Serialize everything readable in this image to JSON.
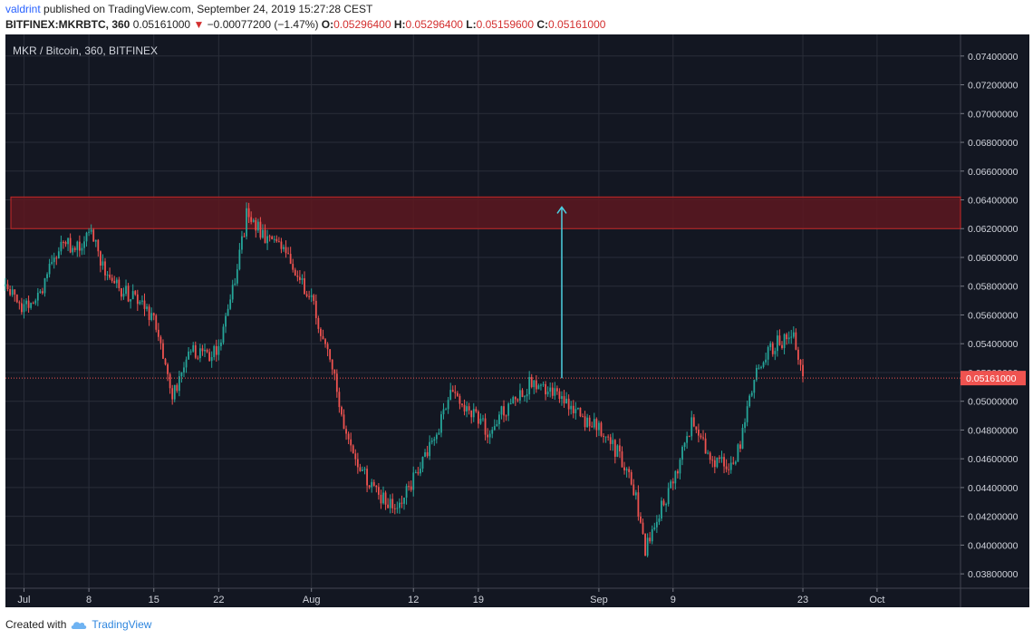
{
  "header": {
    "author": "valdrint",
    "published_text": "published on TradingView.com, September 24, 2019 15:27:28 CEST",
    "symbol": "BITFINEX:MKRBTC, 360",
    "last_price": "0.05161000",
    "change_arrow": "▼",
    "change": "−0.00077200 (−1.47%)",
    "ohlc": [
      {
        "key": "O:",
        "value": "0.05296400"
      },
      {
        "key": "H:",
        "value": "0.05296400"
      },
      {
        "key": "L:",
        "value": "0.05159600"
      },
      {
        "key": "C:",
        "value": "0.05161000"
      }
    ]
  },
  "chart": {
    "label": "MKR / Bitcoin, 360, BITFINEX",
    "price_tag": "0.05161000"
  },
  "footer": {
    "created_with": "Created with",
    "brand": "TradingView"
  },
  "colors": {
    "background": "#131722",
    "up": "#26a69a",
    "down": "#ef5350",
    "grid": "#2a2e39",
    "resistance_fill": "#5d1820",
    "resistance_border": "#c62828",
    "arrow": "#4dd0e1",
    "price_line": "#ef5350"
  },
  "chart_data": {
    "type": "candlestick",
    "y_axis": {
      "min": 0.037,
      "max": 0.0755,
      "ticks": [
        "0.03800000",
        "0.04000000",
        "0.04200000",
        "0.04400000",
        "0.04600000",
        "0.04800000",
        "0.05000000",
        "0.05200000",
        "0.05400000",
        "0.05600000",
        "0.05800000",
        "0.06000000",
        "0.06200000",
        "0.06400000",
        "0.06600000",
        "0.06800000",
        "0.07000000",
        "0.07200000",
        "0.07400000"
      ]
    },
    "x_axis": {
      "range": [
        "2019-06-29",
        "2019-10-10"
      ],
      "ticks": [
        {
          "date": "2019-07-01",
          "label": "Jul"
        },
        {
          "date": "2019-07-08",
          "label": "8"
        },
        {
          "date": "2019-07-15",
          "label": "15"
        },
        {
          "date": "2019-07-22",
          "label": "22"
        },
        {
          "date": "2019-08-01",
          "label": "Aug"
        },
        {
          "date": "2019-08-12",
          "label": "12"
        },
        {
          "date": "2019-08-19",
          "label": "19"
        },
        {
          "date": "2019-09-01",
          "label": "Sep"
        },
        {
          "date": "2019-09-09",
          "label": "9"
        },
        {
          "date": "2019-09-23",
          "label": "23"
        },
        {
          "date": "2019-10-01",
          "label": "Oct"
        }
      ]
    },
    "series": [
      {
        "x": [
          "2019-06-29",
          "2019-07-01",
          "2019-07-03",
          "2019-07-05",
          "2019-07-07",
          "2019-07-08",
          "2019-07-10",
          "2019-07-12",
          "2019-07-14",
          "2019-07-15",
          "2019-07-16",
          "2019-07-17",
          "2019-07-19",
          "2019-07-21",
          "2019-07-22",
          "2019-07-24",
          "2019-07-25",
          "2019-07-27",
          "2019-07-29",
          "2019-08-01",
          "2019-08-03",
          "2019-08-05",
          "2019-08-07",
          "2019-08-09",
          "2019-08-10",
          "2019-08-12",
          "2019-08-14",
          "2019-08-16",
          "2019-08-18",
          "2019-08-20",
          "2019-08-22",
          "2019-08-25",
          "2019-08-27",
          "2019-08-29",
          "2019-09-01",
          "2019-09-03",
          "2019-09-05",
          "2019-09-06",
          "2019-09-07",
          "2019-09-09",
          "2019-09-11",
          "2019-09-13",
          "2019-09-15",
          "2019-09-16",
          "2019-09-18",
          "2019-09-20",
          "2019-09-22",
          "2019-09-23"
        ],
        "close": [
          0.058,
          0.0565,
          0.058,
          0.061,
          0.0605,
          0.062,
          0.0585,
          0.0575,
          0.0565,
          0.0555,
          0.0535,
          0.0505,
          0.0535,
          0.053,
          0.054,
          0.059,
          0.063,
          0.0615,
          0.0605,
          0.057,
          0.053,
          0.047,
          0.0445,
          0.043,
          0.0425,
          0.0445,
          0.047,
          0.0505,
          0.0495,
          0.048,
          0.0495,
          0.0515,
          0.0505,
          0.0495,
          0.048,
          0.0465,
          0.0435,
          0.0395,
          0.0415,
          0.0445,
          0.0485,
          0.046,
          0.0455,
          0.0465,
          0.0525,
          0.054,
          0.0545,
          0.0516
        ]
      }
    ],
    "annotations": [
      {
        "type": "zone",
        "from": 0.062,
        "to": 0.0642
      },
      {
        "type": "arrow",
        "x": "2019-08-28",
        "from": 0.0516,
        "to": 0.0635
      },
      {
        "type": "price_line",
        "value": 0.05161
      }
    ],
    "grid": true
  }
}
